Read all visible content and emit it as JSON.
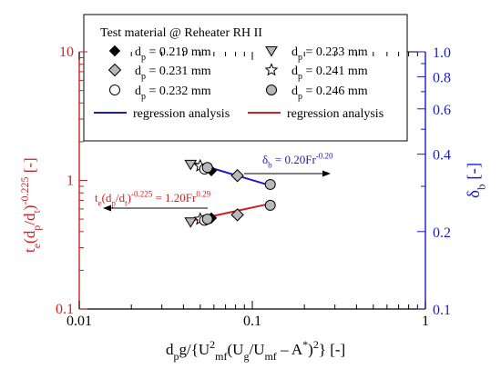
{
  "chart_data": {
    "type": "scatter",
    "colors": {
      "left_axis": "#cc2222",
      "right_axis": "#1a1acc",
      "black_axis": "#000000",
      "blue_line": "#1a1acc",
      "red_line": "#cc2222"
    },
    "x_axis": {
      "scale": "log",
      "lim": [
        0.01,
        1
      ],
      "ticks": [
        0.01,
        0.1,
        1
      ],
      "tick_labels": [
        "0.01",
        "0.1",
        "1"
      ],
      "label_parts": {
        "a": "d",
        "a_sub": "p",
        "b": "g/{U",
        "b_sup": "2",
        "b_sub": "mf",
        "c": "(U",
        "c_sub": "g",
        "d": "/U",
        "d_sub": "mf",
        "e": " – A",
        "e_sup": "*",
        "f": ")",
        "f_sup": "2",
        "g": "}  [-]"
      }
    },
    "y_left": {
      "scale": "log",
      "lim": [
        0.1,
        10
      ],
      "ticks": [
        0.1,
        1,
        10
      ],
      "tick_labels": [
        "0.1",
        "1",
        "10"
      ],
      "label_parts": {
        "a": "t",
        "a_sub": "e",
        "b": "(d",
        "b_sub": "p",
        "c": "/d",
        "c_sub": "t",
        "d": ")",
        "d_sup": "-0.225",
        "e": "  [-]"
      }
    },
    "y_right": {
      "scale": "log",
      "lim": [
        0.1,
        1.0
      ],
      "ticks": [
        0.1,
        0.2,
        0.4,
        0.6,
        0.8,
        1.0
      ],
      "tick_labels": [
        "0.1",
        "0.2",
        "0.4",
        "0.6",
        "0.8",
        "1.0"
      ],
      "label_parts": {
        "a": "δ",
        "a_sub": "b",
        "b": "  [-]"
      }
    },
    "legend": {
      "title": "Test material @ Reheater RH II",
      "position": "top",
      "entries": [
        {
          "prefix": "d",
          "sub": "p",
          "text": " = 0.219 mm",
          "marker": "diamond-filled"
        },
        {
          "prefix": "d",
          "sub": "p",
          "text": " = 0.233 mm",
          "marker": "triangle-down-gray"
        },
        {
          "prefix": "d",
          "sub": "p",
          "text": " = 0.231 mm",
          "marker": "diamond-gray"
        },
        {
          "prefix": "d",
          "sub": "p",
          "text": " = 0.241 mm",
          "marker": "star-open"
        },
        {
          "prefix": "d",
          "sub": "p",
          "text": " = 0.232 mm",
          "marker": "circle-open"
        },
        {
          "prefix": "d",
          "sub": "p",
          "text": " = 0.246 mm",
          "marker": "circle-gray"
        },
        {
          "prefix": "",
          "sub": "",
          "text": "regression analysis",
          "marker": "line-blue"
        },
        {
          "prefix": "",
          "sub": "",
          "text": "regression analysis",
          "marker": "line-red"
        }
      ]
    },
    "series": [
      {
        "name": "d_p = 0.219 mm",
        "marker": "diamond-filled",
        "left_axis_points": [
          [
            0.058,
            0.51
          ]
        ],
        "right_axis_points": [
          [
            0.058,
            0.345
          ]
        ]
      },
      {
        "name": "d_p = 0.233 mm",
        "marker": "triangle-down-gray",
        "left_axis_points": [
          [
            0.044,
            0.475
          ]
        ],
        "right_axis_points": [
          [
            0.044,
            0.365
          ]
        ]
      },
      {
        "name": "d_p = 0.231 mm",
        "marker": "diamond-gray",
        "left_axis_points": [
          [
            0.082,
            0.54
          ]
        ],
        "right_axis_points": [
          [
            0.082,
            0.33
          ]
        ]
      },
      {
        "name": "d_p = 0.241 mm",
        "marker": "star-open",
        "left_axis_points": [
          [
            0.05,
            0.5
          ]
        ],
        "right_axis_points": [
          [
            0.05,
            0.36
          ]
        ]
      },
      {
        "name": "d_p = 0.232 mm",
        "marker": "circle-open",
        "left_axis_points": [
          [
            0.053,
            0.49
          ]
        ],
        "right_axis_points": [
          [
            0.053,
            0.35
          ]
        ]
      },
      {
        "name": "d_p = 0.246 mm",
        "marker": "circle-gray",
        "left_axis_points": [
          [
            0.055,
            0.5
          ],
          [
            0.127,
            0.64
          ]
        ],
        "right_axis_points": [
          [
            0.055,
            0.355
          ],
          [
            0.127,
            0.305
          ]
        ]
      }
    ],
    "regressions": [
      {
        "axis": "right",
        "color": "blue",
        "coef": 0.2,
        "exponent": -0.2,
        "x_range": [
          0.044,
          0.127
        ],
        "label_parts": {
          "a": "δ",
          "a_sub": "b",
          "b": " = 0.20Fr",
          "b_sup": "-0.20"
        },
        "arrow_direction": "right"
      },
      {
        "axis": "left",
        "color": "red",
        "coef": 1.2,
        "exponent": 0.29,
        "x_range": [
          0.044,
          0.127
        ],
        "label_parts": {
          "a": "t",
          "a_sub": "e",
          "b": "(d",
          "b_sub": "p",
          "c": "/d",
          "c_sub": "t",
          "d": ")",
          "d_sup": "-0.225",
          "e": " = 1.20Fr",
          "e_sup": "0.29"
        },
        "arrow_direction": "left"
      }
    ]
  }
}
